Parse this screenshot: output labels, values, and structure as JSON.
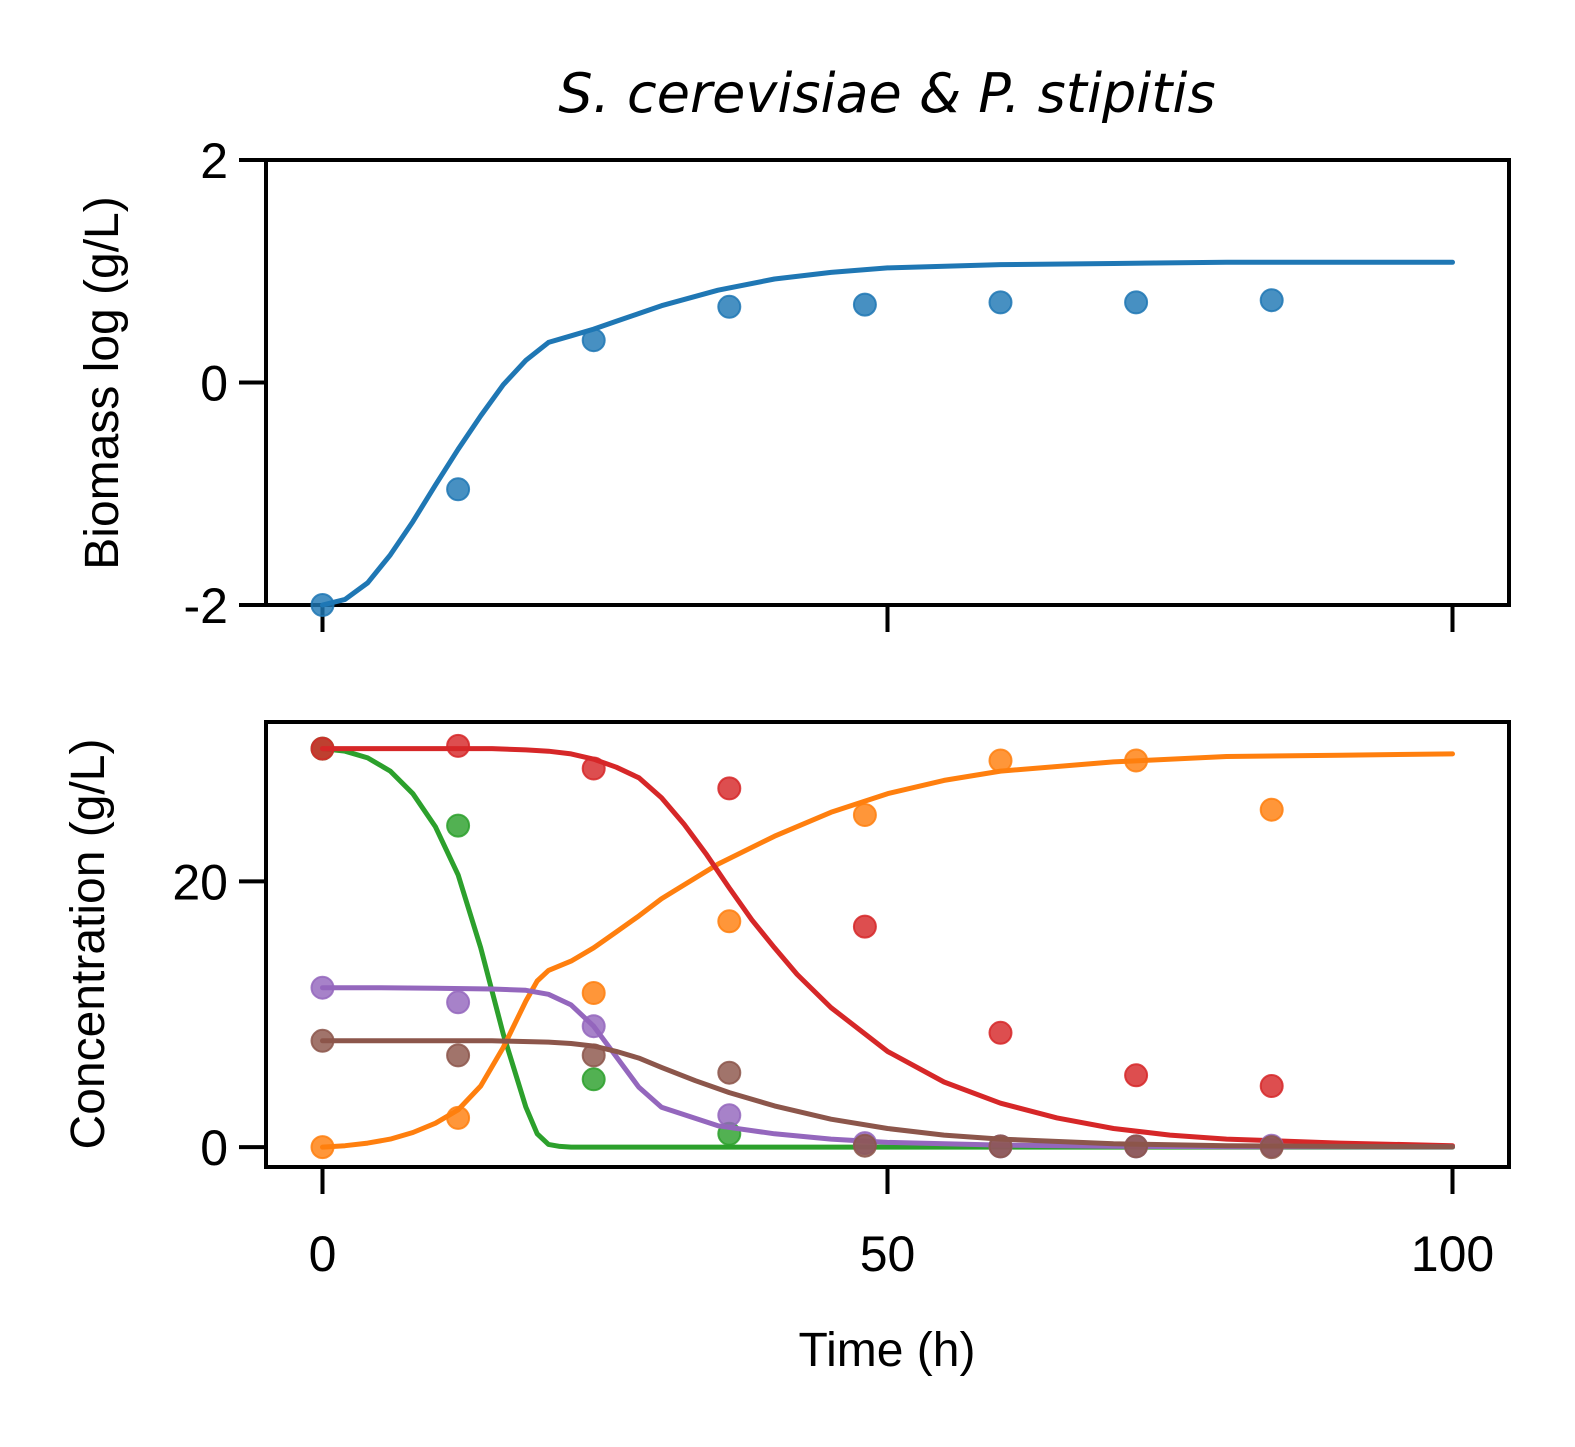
{
  "title": "S. cerevisiae & P. stipitis",
  "colors": {
    "blue": "#1f77b4",
    "orange": "#ff7f0e",
    "green": "#2ca02c",
    "red": "#d62728",
    "purple": "#9467bd",
    "brown": "#8c564b"
  },
  "chart_data": [
    {
      "type": "line",
      "panel": "top",
      "ylabel": "Biomass log (g/L)",
      "xlabel": "",
      "xlim": [
        -5,
        105
      ],
      "ylim": [
        -2,
        2
      ],
      "xticks": [
        0,
        50,
        100
      ],
      "yticks": [
        -2,
        0,
        2
      ],
      "ytick_labels": [
        "-2",
        "0",
        "2"
      ],
      "grid": false,
      "series": [
        {
          "color": "#1f77b4",
          "line": {
            "x": [
              0,
              2,
              4,
              6,
              8,
              10,
              12,
              14,
              16,
              18,
              20,
              22,
              24,
              26,
              28,
              30,
              35,
              40,
              45,
              50,
              60,
              70,
              80,
              90,
              100
            ],
            "y": [
              -2.0,
              -1.95,
              -1.8,
              -1.55,
              -1.25,
              -0.92,
              -0.6,
              -0.3,
              -0.02,
              0.2,
              0.36,
              0.42,
              0.48,
              0.55,
              0.62,
              0.69,
              0.83,
              0.93,
              0.99,
              1.03,
              1.06,
              1.07,
              1.08,
              1.08,
              1.08
            ]
          },
          "points": {
            "x": [
              0,
              12,
              24,
              36,
              48,
              60,
              72,
              84
            ],
            "y": [
              -2.0,
              -0.96,
              0.38,
              0.68,
              0.7,
              0.72,
              0.72,
              0.74
            ]
          }
        }
      ]
    },
    {
      "type": "line",
      "panel": "bottom",
      "ylabel": "Concentration (g/L)",
      "xlabel": "Time (h)",
      "xlim": [
        -5,
        105
      ],
      "ylim": [
        -1.5,
        32
      ],
      "xticks": [
        0,
        50,
        100
      ],
      "xtick_labels": [
        "0",
        "50",
        "100"
      ],
      "yticks": [
        0,
        20
      ],
      "ytick_labels": [
        "0",
        "20"
      ],
      "grid": false,
      "series": [
        {
          "color": "#2ca02c",
          "line": {
            "x": [
              0,
              2,
              4,
              6,
              8,
              10,
              12,
              14,
              16,
              18,
              19,
              20,
              21,
              22,
              25,
              30,
              40,
              50,
              60,
              70,
              80,
              90,
              100
            ],
            "y": [
              30.0,
              29.8,
              29.3,
              28.3,
              26.6,
              24.1,
              20.5,
              15.0,
              8.5,
              3.0,
              1.0,
              0.2,
              0.05,
              0.0,
              0.0,
              0.0,
              0.0,
              0.0,
              0.0,
              0.0,
              0.0,
              0.0,
              0.0
            ]
          },
          "points": {
            "x": [
              0,
              12,
              24,
              36
            ],
            "y": [
              30.0,
              24.2,
              5.1,
              1.0
            ]
          }
        },
        {
          "color": "#ff7f0e",
          "line": {
            "x": [
              0,
              2,
              4,
              6,
              8,
              10,
              12,
              14,
              16,
              18,
              19,
              20,
              22,
              24,
              26,
              28,
              30,
              35,
              40,
              45,
              50,
              55,
              60,
              70,
              80,
              90,
              100
            ],
            "y": [
              0.0,
              0.1,
              0.3,
              0.6,
              1.1,
              1.8,
              2.8,
              4.6,
              7.5,
              11.0,
              12.5,
              13.3,
              14.0,
              15.0,
              16.2,
              17.4,
              18.7,
              21.3,
              23.4,
              25.2,
              26.6,
              27.6,
              28.3,
              29.0,
              29.4,
              29.5,
              29.6
            ]
          },
          "points": {
            "x": [
              0,
              12,
              24,
              36,
              48,
              60,
              72,
              84
            ],
            "y": [
              0.0,
              2.2,
              11.6,
              17.0,
              25.0,
              29.1,
              29.1,
              25.4
            ]
          }
        },
        {
          "color": "#d62728",
          "line": {
            "x": [
              0,
              5,
              10,
              15,
              18,
              20,
              22,
              24,
              26,
              28,
              30,
              32,
              34,
              36,
              38,
              40,
              42,
              45,
              50,
              55,
              60,
              65,
              70,
              75,
              80,
              90,
              100
            ],
            "y": [
              30.0,
              30.0,
              30.0,
              30.0,
              29.9,
              29.8,
              29.6,
              29.2,
              28.6,
              27.8,
              26.3,
              24.3,
              22.0,
              19.5,
              17.1,
              15.0,
              13.0,
              10.5,
              7.2,
              4.9,
              3.3,
              2.2,
              1.4,
              0.9,
              0.6,
              0.3,
              0.1
            ]
          },
          "points": {
            "x": [
              0,
              12,
              24,
              36,
              48,
              60,
              72,
              84
            ],
            "y": [
              30.0,
              30.2,
              28.5,
              27.0,
              16.6,
              8.6,
              5.4,
              4.6
            ]
          }
        },
        {
          "color": "#9467bd",
          "line": {
            "x": [
              0,
              5,
              10,
              15,
              18,
              20,
              22,
              24,
              26,
              28,
              30,
              35,
              40,
              45,
              50,
              60,
              70,
              80,
              90,
              100
            ],
            "y": [
              12.0,
              12.0,
              11.95,
              11.9,
              11.8,
              11.5,
              10.7,
              9.1,
              6.8,
              4.5,
              3.0,
              1.6,
              1.0,
              0.6,
              0.35,
              0.15,
              0.06,
              0.03,
              0.02,
              0.01
            ]
          },
          "points": {
            "x": [
              0,
              12,
              24,
              36,
              48,
              60,
              72,
              84
            ],
            "y": [
              12.0,
              10.9,
              9.1,
              2.4,
              0.3,
              0.05,
              0.05,
              0.1
            ]
          }
        },
        {
          "color": "#8c564b",
          "line": {
            "x": [
              0,
              5,
              10,
              15,
              20,
              22,
              24,
              26,
              28,
              30,
              33,
              36,
              40,
              45,
              50,
              55,
              60,
              70,
              80,
              90,
              100
            ],
            "y": [
              8.0,
              8.0,
              8.0,
              8.0,
              7.9,
              7.8,
              7.6,
              7.2,
              6.7,
              6.0,
              5.0,
              4.1,
              3.1,
              2.1,
              1.4,
              0.9,
              0.6,
              0.25,
              0.1,
              0.05,
              0.02
            ]
          },
          "points": {
            "x": [
              0,
              12,
              24,
              36,
              48,
              60,
              72,
              84
            ],
            "y": [
              8.0,
              6.9,
              6.9,
              5.6,
              0.1,
              0.05,
              0.05,
              0.0
            ]
          }
        }
      ]
    }
  ]
}
